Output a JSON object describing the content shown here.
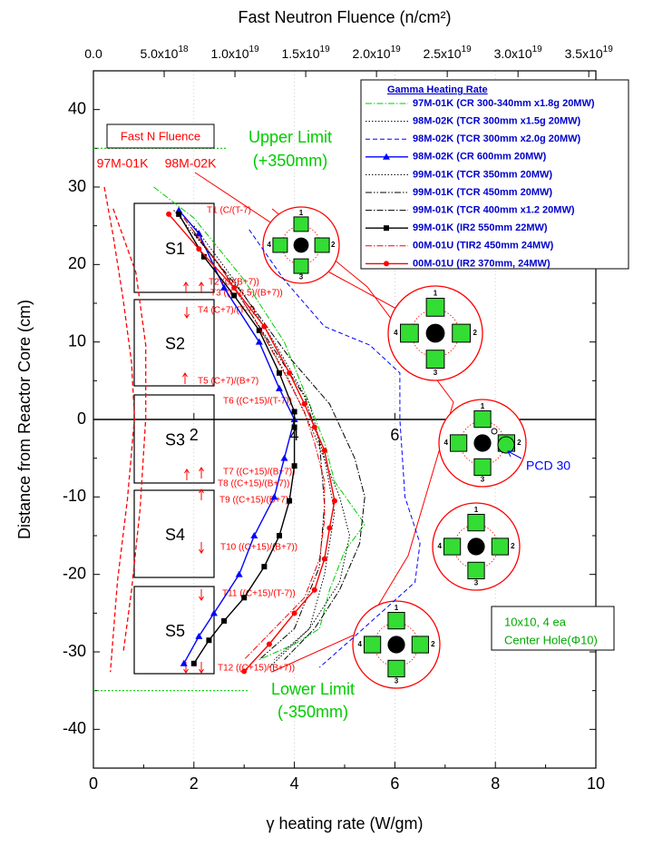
{
  "chart_data": {
    "type": "line",
    "x2_label": "Fast Neutron Fluence (n/cm²)",
    "x_label": "γ heating rate (W/gm)",
    "y_label": "Distance from Reactor Core (cm)",
    "xlim": [
      0,
      10
    ],
    "xticks": [
      0,
      2,
      4,
      6,
      8,
      10
    ],
    "ylim": [
      -45,
      45
    ],
    "yticks": [
      -40,
      -30,
      -20,
      -10,
      0,
      10,
      20,
      30,
      40
    ],
    "x2lim": [
      0,
      3.55e+19
    ],
    "x2ticks": [
      {
        "value": 0,
        "label": "0.0"
      },
      {
        "value": 5e+18,
        "label": "5.0x10",
        "exponent": "18"
      },
      {
        "value": 1e+19,
        "label": "1.0x10",
        "exponent": "19"
      },
      {
        "value": 1.5e+19,
        "label": "1.5x10",
        "exponent": "19"
      },
      {
        "value": 2e+19,
        "label": "2.0x10",
        "exponent": "19"
      },
      {
        "value": 2.5e+19,
        "label": "2.5x10",
        "exponent": "19"
      },
      {
        "value": 3e+19,
        "label": "3.0x10",
        "exponent": "19"
      },
      {
        "value": 3.5e+19,
        "label": "3.5x10",
        "exponent": "19"
      }
    ],
    "center_ticks": [
      2,
      4,
      6
    ],
    "grid": true,
    "legend_title": "Gamma Heating Rate",
    "legend_position": "upper right",
    "series": [
      {
        "name": "97M-01K (CR 300-340mm x1.8g 20MW)",
        "color": "#00cc00",
        "style": "dash-dot",
        "marker": "none",
        "x": [
          1.2,
          2.0,
          3.0,
          3.8,
          4.3,
          4.6,
          4.8,
          5.4,
          5.0,
          4.7,
          4.5,
          4.0,
          3.3
        ],
        "values": [
          30,
          26,
          18,
          10,
          2,
          -3,
          -8,
          -13.5,
          -17,
          -22,
          -27,
          -29,
          -31
        ]
      },
      {
        "name": "98M-02K (TCR 300mm x1.5g 20MW)",
        "color": "#000000",
        "style": "dot",
        "marker": "none",
        "x": [
          1.6,
          2.5,
          3.3,
          3.9,
          4.4,
          4.9,
          5.1,
          4.9,
          4.3,
          3.5
        ],
        "values": [
          27,
          20,
          12,
          5,
          -2,
          -10,
          -15,
          -21,
          -27,
          -32
        ]
      },
      {
        "name": "98M-02K (TCR 300mm x2.0g 20MW)",
        "color": "#0000ff",
        "style": "dash",
        "marker": "none",
        "x": [
          3.1,
          3.8,
          4.6,
          5.5,
          6.1,
          6.1,
          6.2,
          6.5,
          6.4,
          5.2,
          4.5
        ],
        "values": [
          24.5,
          18,
          12,
          9.6,
          6,
          0,
          -10,
          -16,
          -21,
          -28,
          -32
        ]
      },
      {
        "name": "98M-02K (CR 600mm 20MW)",
        "color": "#0000ff",
        "style": "solid",
        "marker": "triangle",
        "x": [
          1.7,
          2.1,
          2.6,
          3.3,
          3.7,
          4.0,
          3.8,
          3.6,
          3.2,
          2.9,
          2.4,
          2.1,
          1.8
        ],
        "values": [
          27,
          24,
          17,
          10,
          4,
          0,
          -5,
          -10,
          -15,
          -20,
          -25,
          -28,
          -31.5
        ]
      },
      {
        "name": "99M-01K (TCR 350mm 20MW)",
        "color": "#000000",
        "style": "dot",
        "marker": "none",
        "x": [
          2.0,
          2.8,
          3.6,
          4.3,
          4.6,
          4.8,
          4.6,
          4.3,
          3.6
        ],
        "values": [
          25,
          18,
          10,
          2,
          -5,
          -12,
          -20,
          -27,
          -31
        ]
      },
      {
        "name": "99M-01K (TCR 450mm 20MW)",
        "color": "#000000",
        "style": "dash-dot-dot",
        "marker": "none",
        "x": [
          1.8,
          2.6,
          3.4,
          4.2,
          4.5,
          4.6,
          4.5,
          4.0,
          3.3
        ],
        "values": [
          26,
          19,
          11,
          3,
          -3,
          -11,
          -19,
          -27,
          -31
        ]
      },
      {
        "name": "99M-01K (TCR 400mm x1.2 20MW)",
        "color": "#000000",
        "style": "dash-dot",
        "marker": "none",
        "x": [
          2.0,
          3.0,
          3.9,
          4.7,
          5.2,
          5.4,
          5.3,
          4.9,
          4.4,
          3.8
        ],
        "values": [
          24,
          16,
          8,
          2,
          -5,
          -10,
          -16,
          -22,
          -27,
          -31
        ]
      },
      {
        "name": "99M-01K (IR2 550mm 22MW)",
        "color": "#000000",
        "style": "solid",
        "marker": "square",
        "x": [
          1.7,
          2.2,
          2.8,
          3.3,
          3.7,
          4.0,
          4.0,
          4.0,
          3.9,
          3.7,
          3.4,
          3.0,
          2.6,
          2.3,
          2.0
        ],
        "values": [
          26.5,
          21,
          16,
          11.5,
          6,
          1,
          -1,
          -6,
          -10.5,
          -15,
          -19,
          -23,
          -26,
          -28.5,
          -31.5
        ]
      },
      {
        "name": "00M-01U (TIR2 450mm 24MW)",
        "color": "#ff0000",
        "style": "dash-dot",
        "marker": "none",
        "x": [
          1.8,
          2.5,
          3.2,
          3.8,
          4.2,
          4.4,
          4.6,
          4.6,
          4.5,
          4.2,
          3.6,
          3.0
        ],
        "values": [
          26,
          20,
          13,
          6,
          1,
          -3,
          -8,
          -13,
          -18,
          -23,
          -27,
          -31
        ]
      },
      {
        "name": "00M-01U (IR2 370mm, 24MW)",
        "color": "#ff0000",
        "style": "solid",
        "marker": "circle",
        "x": [
          1.5,
          2.1,
          2.8,
          3.4,
          3.9,
          4.2,
          4.4,
          4.6,
          4.8,
          4.7,
          4.6,
          4.4,
          4.0,
          3.5,
          3.0
        ],
        "values": [
          26.5,
          22,
          17,
          12,
          6,
          2,
          -1,
          -4,
          -10.5,
          -14,
          -18,
          -22,
          -25,
          -29,
          -32.5
        ]
      }
    ],
    "fluence_box_label": "Fast N Fluence",
    "fluence_series": [
      {
        "name": "97M-01K",
        "color": "#ff0000",
        "style": "dash",
        "axis": "x2",
        "x": [
          7.7e+17,
          1.4e+18,
          2.1e+18,
          2.7e+18,
          2.9e+18,
          2.4e+18,
          1.7e+18,
          1.4e+18,
          1.2e+18
        ],
        "values": [
          30,
          23.7,
          15.5,
          7.3,
          0.2,
          -10.3,
          -20.9,
          -27.9,
          -32.6
        ]
      },
      {
        "name": "98M-02K",
        "color": "#ff0000",
        "style": "dash",
        "axis": "x2",
        "x": [
          1.4e+18,
          3e+18,
          3.7e+18,
          3.7e+18,
          3.3e+18,
          2.7e+18,
          2.1e+18
        ],
        "values": [
          27.2,
          19,
          9.6,
          0.2,
          -11.5,
          -22,
          -30.2
        ]
      }
    ],
    "limits": [
      {
        "label": "Upper Limit",
        "sublabel": "(+350mm)",
        "value": 35,
        "color": "#00cc00"
      },
      {
        "label": "Lower Limit",
        "sublabel": "(-350mm)",
        "value": -35,
        "color": "#00cc00"
      }
    ],
    "samples": [
      "S1",
      "S2",
      "S3",
      "S4",
      "S5"
    ],
    "positions": [
      "T1 (C/(T-7)",
      "T2 (C/(B+7))",
      "T3 ((C-8.5)/(B+7))",
      "T4 (C+7)/(T-7)",
      "T5 (C+7)/(B+7)",
      "T6 ((C+15)/(T-7))",
      "T7 ((C+15)/(B+7))",
      "T8 ((C+15)/(B+7))",
      "T9 ((C+15)/(B+7))",
      "T10 ((C+15)/(B+7))",
      "T11 ((C+15)/(T-7))",
      "T12 ((C+15)/(B+7))"
    ],
    "diagram_numbers": [
      "1",
      "2",
      "3",
      "4"
    ],
    "pcd_label": "PCD 30",
    "note": [
      "10x10, 4 ea",
      "Center Hole(Φ10)"
    ]
  }
}
